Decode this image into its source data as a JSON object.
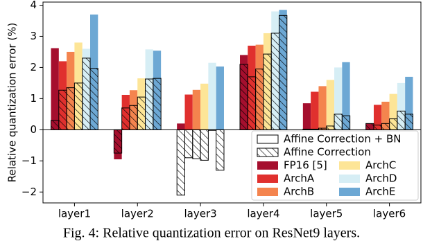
{
  "chart_data": {
    "type": "grouped-overlay-bar",
    "y_label": "Relative quantization error (%)",
    "caption": "Fig. 4: Relative quantization error on ResNet9 layers.",
    "categories": [
      "layer1",
      "layer2",
      "layer3",
      "layer4",
      "layer5",
      "layer6"
    ],
    "variants": [
      {
        "name": "Affine Correction + BN",
        "hatch": false
      },
      {
        "name": "Affine Correction",
        "hatch": true
      }
    ],
    "series": [
      {
        "name": "FP16 [5]",
        "color": "#a50f2e",
        "values": [
          [
            2.62,
            -0.95,
            0.2,
            2.4,
            0.85,
            0.2
          ],
          [
            0.3,
            -0.75,
            -2.1,
            2.1,
            0.02,
            0.2
          ]
        ]
      },
      {
        "name": "ArchA",
        "color": "#e0302e",
        "values": [
          [
            2.2,
            1.12,
            1.13,
            2.7,
            1.22,
            0.8
          ],
          [
            1.27,
            0.7,
            -0.9,
            1.7,
            0.02,
            0.15
          ]
        ]
      },
      {
        "name": "ArchB",
        "color": "#f4844e",
        "values": [
          [
            2.5,
            1.27,
            1.28,
            2.73,
            1.4,
            0.9
          ],
          [
            1.35,
            0.78,
            -0.93,
            1.95,
            0.05,
            0.2
          ]
        ]
      },
      {
        "name": "ArchC",
        "color": "#fde597",
        "values": [
          [
            2.8,
            1.65,
            1.48,
            3.1,
            1.6,
            1.15
          ],
          [
            1.5,
            1.05,
            -0.98,
            2.43,
            0.12,
            0.35
          ]
        ]
      },
      {
        "name": "ArchD",
        "color": "#d6eef5",
        "values": [
          [
            2.6,
            2.58,
            2.15,
            3.8,
            2.0,
            1.5
          ],
          [
            2.3,
            1.63,
            -0.02,
            3.1,
            0.5,
            0.6
          ]
        ]
      },
      {
        "name": "ArchE",
        "color": "#6da8d4",
        "values": [
          [
            3.7,
            2.54,
            2.03,
            3.85,
            2.17,
            1.7
          ],
          [
            1.97,
            1.65,
            -1.3,
            3.67,
            0.45,
            0.5
          ]
        ]
      }
    ],
    "ylim": [
      -2.35,
      4.1
    ],
    "yticks": [
      {
        "value": -2,
        "label": "−2"
      },
      {
        "value": -1,
        "label": "−1"
      },
      0,
      1,
      2,
      3,
      4
    ],
    "legend": "lower right"
  }
}
